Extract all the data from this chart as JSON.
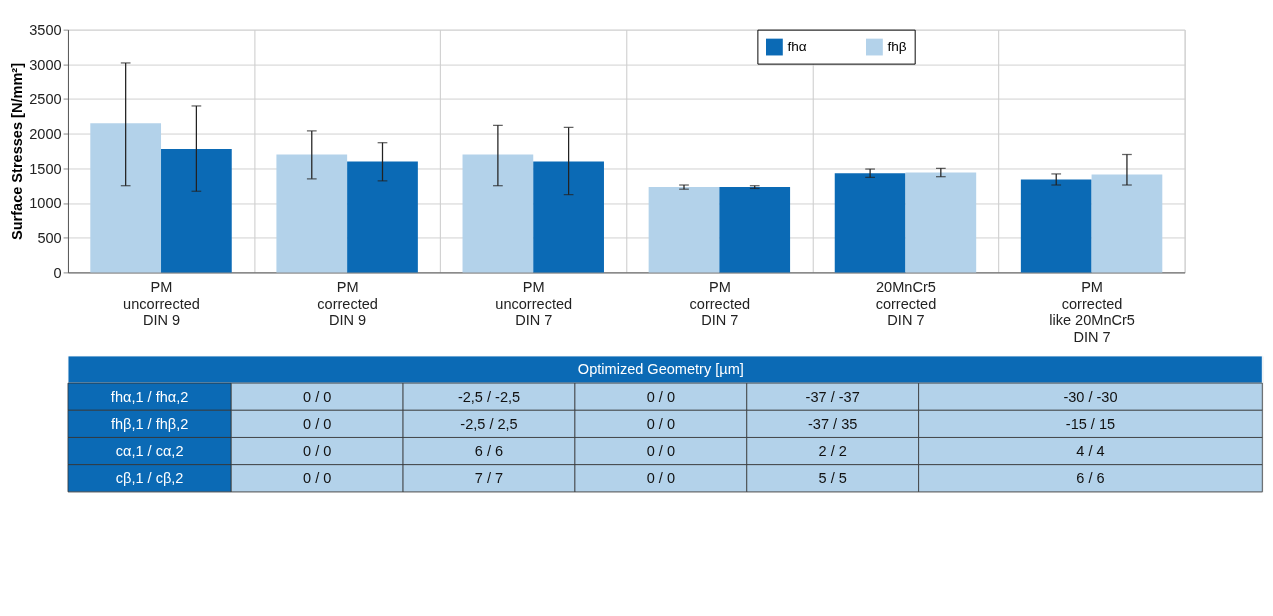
{
  "chart_data": {
    "type": "bar",
    "ylabel": "Surface Stresses [N/mm²]",
    "categories": [
      "PM\nuncorrected\nDIN 9",
      "PM\ncorrected\nDIN 9",
      "PM\nuncorrected\nDIN 7",
      "PM\ncorrected\nDIN 7",
      "20MnCr5\ncorrected\nDIN 7",
      "PM\ncorrected\nlike 20MnCr5\nDIN 7"
    ],
    "series": [
      {
        "name": "fhβ",
        "color": "#b3d2ea",
        "values": [
          2150,
          1700,
          1700,
          1230,
          null,
          null
        ],
        "errors": [
          [
            1250,
            3020
          ],
          [
            1350,
            2040
          ],
          [
            1250,
            2120
          ],
          [
            1200,
            1260
          ],
          null,
          null
        ]
      },
      {
        "name": "fhα",
        "color": "#0b6ab5",
        "values": [
          1780,
          1600,
          1600,
          1230,
          1430,
          1340
        ],
        "errors": [
          [
            1170,
            2400
          ],
          [
            1320,
            1870
          ],
          [
            1120,
            2090
          ],
          [
            1210,
            1250
          ],
          [
            1370,
            1490
          ],
          [
            1260,
            1420
          ]
        ]
      },
      {
        "color": "#b3d2ea",
        "values": [
          null,
          null,
          null,
          null,
          1440,
          1410
        ],
        "errors": [
          null,
          null,
          null,
          null,
          [
            1380,
            1500
          ],
          [
            1260,
            1700
          ]
        ]
      }
    ],
    "ylim": [
      0,
      3500
    ],
    "yticks": [
      0,
      500,
      1000,
      1500,
      2000,
      2500,
      3000,
      3500
    ],
    "grid": true,
    "legend": "top right",
    "annotations": [
      "Optimized Geometry [µm]",
      "fhα,1 / fhα,2",
      "0 / 0",
      "-2,5 / -2,5",
      "0 / 0",
      "-37 / -37",
      "-30 / -30",
      "fhβ,1 / fhβ,2",
      "0 / 0",
      "-2,5 / 2,5",
      "0 / 0",
      "-37 / 35",
      "-15 / 15",
      "cα,1 / cα,2",
      "0 / 0",
      "6 / 6",
      "0 / 0",
      "2 / 2",
      "4 / 4",
      "cβ,1 / cβ,2",
      "0 / 0",
      "7 / 7",
      "0 / 0",
      "5 / 5",
      "6 / 6"
    ]
  }
}
